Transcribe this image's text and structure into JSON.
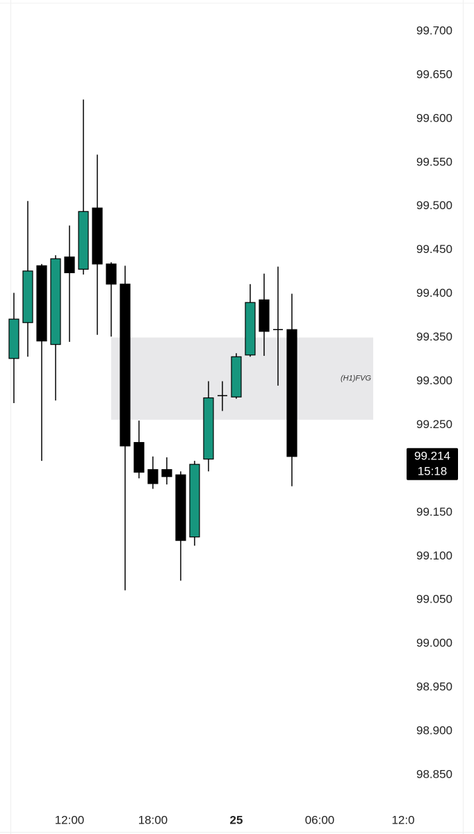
{
  "chart_data": {
    "type": "candlestick",
    "open": [
      99.326,
      99.367,
      99.432,
      99.342,
      99.442,
      99.428,
      99.498,
      99.434,
      99.411,
      99.23,
      99.199,
      99.199,
      99.193,
      99.122,
      99.211,
      99.283,
      99.282,
      99.33,
      99.393,
      99.359,
      99.359
    ],
    "high": [
      99.401,
      99.506,
      99.434,
      99.444,
      99.478,
      99.622,
      99.559,
      99.436,
      99.432,
      99.255,
      99.214,
      99.213,
      99.197,
      99.209,
      99.3,
      99.3,
      99.332,
      99.411,
      99.423,
      99.431,
      99.4
    ],
    "low": [
      99.275,
      99.328,
      99.209,
      99.278,
      99.345,
      99.422,
      99.353,
      99.351,
      99.061,
      99.189,
      99.177,
      99.182,
      99.072,
      99.112,
      99.197,
      99.266,
      99.28,
      99.328,
      99.329,
      99.295,
      99.18
    ],
    "close": [
      99.371,
      99.426,
      99.346,
      99.44,
      99.424,
      99.494,
      99.434,
      99.411,
      99.226,
      99.196,
      99.183,
      99.191,
      99.118,
      99.205,
      99.281,
      99.284,
      99.328,
      99.39,
      99.357,
      99.359,
      99.214
    ],
    "up_color": "#17967e",
    "down_color": "#000000",
    "ylim": [
      98.85,
      99.7
    ],
    "yticks": [
      {
        "value": 99.7,
        "label": "99.700"
      },
      {
        "value": 99.65,
        "label": "99.650"
      },
      {
        "value": 99.6,
        "label": "99.600"
      },
      {
        "value": 99.55,
        "label": "99.550"
      },
      {
        "value": 99.5,
        "label": "99.500"
      },
      {
        "value": 99.45,
        "label": "99.450"
      },
      {
        "value": 99.4,
        "label": "99.400"
      },
      {
        "value": 99.35,
        "label": "99.350"
      },
      {
        "value": 99.3,
        "label": "99.300"
      },
      {
        "value": 99.25,
        "label": "99.250"
      },
      {
        "value": 99.15,
        "label": "99.150"
      },
      {
        "value": 99.1,
        "label": "99.100"
      },
      {
        "value": 99.05,
        "label": "99.050"
      },
      {
        "value": 99.0,
        "label": "99.000"
      },
      {
        "value": 98.95,
        "label": "98.950"
      },
      {
        "value": 98.9,
        "label": "98.900"
      },
      {
        "value": 98.85,
        "label": "98.850"
      }
    ],
    "xticks": [
      {
        "value": 4,
        "label": "12:00"
      },
      {
        "value": 10,
        "label": "18:00"
      },
      {
        "value": 16,
        "label": "25",
        "bold": true
      },
      {
        "value": 22,
        "label": "06:00"
      },
      {
        "value": 28,
        "label": "12:0"
      }
    ],
    "zones": [
      {
        "label": "(H1)FVG",
        "top": 99.35,
        "bottom": 99.256,
        "color": "#e8e8ea"
      }
    ],
    "last_price": {
      "value": 99.214,
      "countdown": "15:18"
    }
  }
}
